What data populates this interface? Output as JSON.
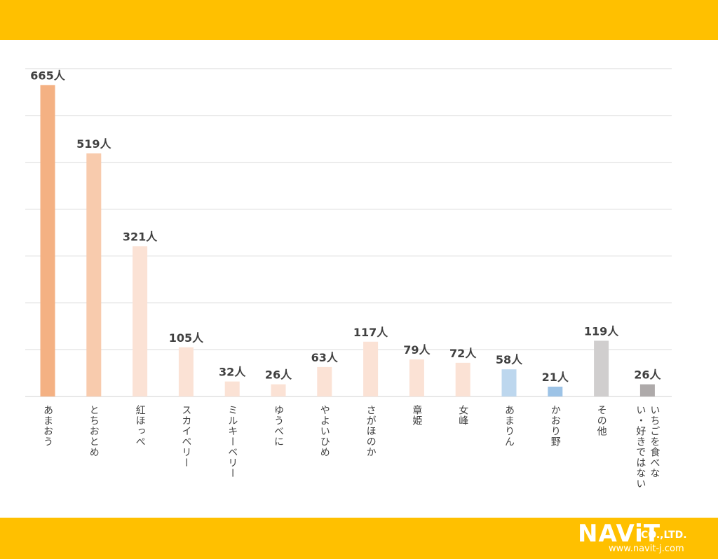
{
  "colors": {
    "band": "#FFC000",
    "grid": "#D9D9D9",
    "axis": "#D9D9D9",
    "label": "#404040",
    "value_label": "#404040"
  },
  "logo": {
    "main": "NAViT",
    "suffix": "CO.,LTD.",
    "url": "www.navit-j.com"
  },
  "chart_data": {
    "type": "bar",
    "title": "",
    "xlabel": "",
    "ylabel": "",
    "ylim": [
      0,
      700
    ],
    "grid": true,
    "value_suffix": "人",
    "categories": [
      "あまおう",
      "とちおとめ",
      "紅ほっぺ",
      "スカイベリー",
      "ミルキーベリー",
      "ゆうべに",
      "やよいひめ",
      "さがほのか",
      "章姫",
      "女峰",
      "あまりん",
      "かおり野",
      "その他",
      "いちごを食べない・好きではない"
    ],
    "category_lines": [
      [
        "あまおう"
      ],
      [
        "とちおとめ"
      ],
      [
        "紅ほっぺ"
      ],
      [
        "スカイベリー"
      ],
      [
        "ミルキーベリー"
      ],
      [
        "ゆうべに"
      ],
      [
        "やよいひめ"
      ],
      [
        "さがほのか"
      ],
      [
        "章姫"
      ],
      [
        "女峰"
      ],
      [
        "あまりん"
      ],
      [
        "かおり野"
      ],
      [
        "その他"
      ],
      [
        "いちごを食べな",
        "い・好きではない"
      ]
    ],
    "values": [
      665,
      519,
      321,
      105,
      32,
      26,
      63,
      117,
      79,
      72,
      58,
      21,
      119,
      26
    ],
    "colors": [
      "#F4B183",
      "#F8CBAD",
      "#FBE2D5",
      "#FBE2D5",
      "#FBE2D5",
      "#FBE2D5",
      "#FBE2D5",
      "#FBE2D5",
      "#FBE2D5",
      "#FBE2D5",
      "#BDD7EE",
      "#9DC3E6",
      "#D0CECE",
      "#AEAAAA"
    ]
  }
}
